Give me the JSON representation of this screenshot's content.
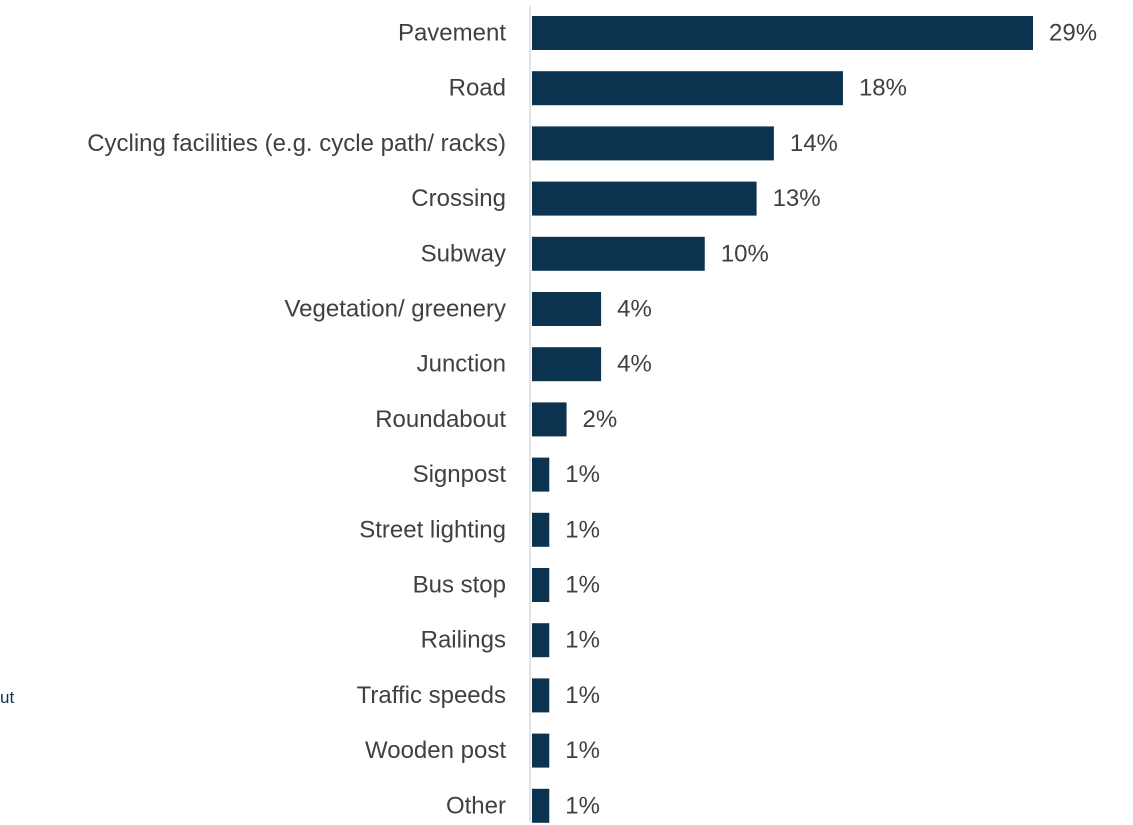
{
  "chart_data": {
    "type": "bar",
    "orientation": "horizontal",
    "categories": [
      "Pavement",
      "Road",
      "Cycling facilities (e.g. cycle path/ racks)",
      "Crossing",
      "Subway",
      "Vegetation/ greenery",
      "Junction",
      "Roundabout",
      "Signpost",
      "Street lighting",
      "Bus stop",
      "Railings",
      "Traffic speeds",
      "Wooden post",
      "Other"
    ],
    "values": [
      29,
      18,
      14,
      13,
      10,
      4,
      4,
      2,
      1,
      1,
      1,
      1,
      1,
      1,
      1
    ],
    "value_labels": [
      "29%",
      "18%",
      "14%",
      "13%",
      "10%",
      "4%",
      "4%",
      "2%",
      "1%",
      "1%",
      "1%",
      "1%",
      "1%",
      "1%",
      "1%"
    ],
    "unit": "%",
    "bar_color": "#0b3350",
    "title": "",
    "xlabel": "",
    "ylabel": "",
    "grid": false,
    "legend": "none"
  },
  "fragment_text": "ut"
}
